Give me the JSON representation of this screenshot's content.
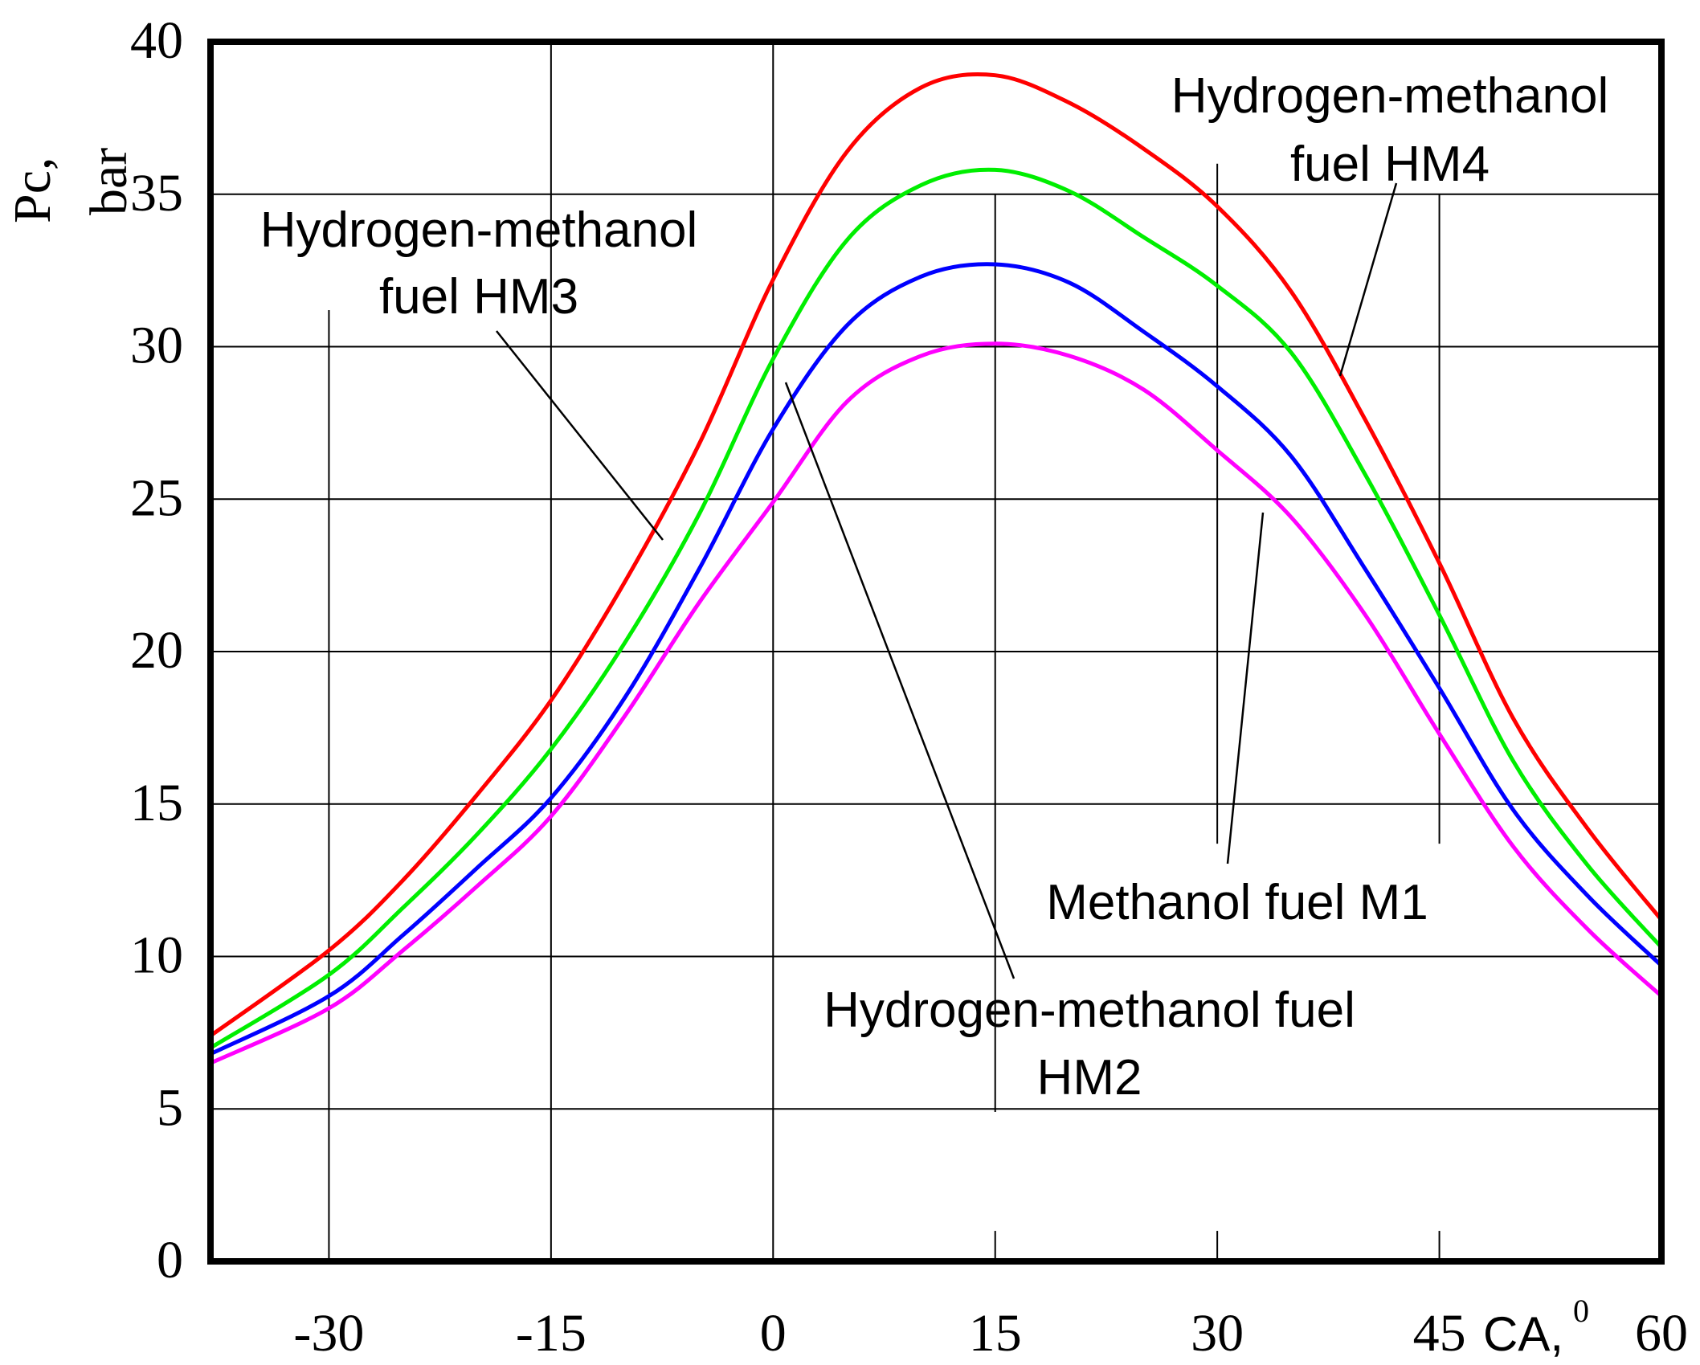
{
  "chart_data": {
    "type": "line",
    "title": "",
    "xlabel": "CA,",
    "xlabel_superscript": "0",
    "ylabel": "Pc,",
    "ylabel_unit": "bar",
    "xlim": [
      -38,
      60
    ],
    "ylim": [
      0,
      40
    ],
    "x_ticks": [
      -30,
      -15,
      0,
      15,
      30,
      45,
      60
    ],
    "x_tick_labels": [
      "-30",
      "-15",
      "0",
      "15",
      "30",
      "45",
      "60"
    ],
    "y_ticks": [
      0,
      5,
      10,
      15,
      20,
      25,
      30,
      35,
      40
    ],
    "y_tick_labels": [
      "0",
      "5",
      "10",
      "15",
      "20",
      "25",
      "30",
      "35",
      "40"
    ],
    "grid": true,
    "x": [
      -38,
      -30,
      -25,
      -20,
      -15,
      -10,
      -5,
      0,
      5,
      10,
      15,
      20,
      25,
      30,
      35,
      40,
      45,
      50,
      55,
      60
    ],
    "series": [
      {
        "name": "Hydrogen-methanol fuel HM4",
        "color": "#ff0000",
        "values": [
          7.4,
          10.2,
          12.5,
          15.3,
          18.4,
          22.3,
          26.8,
          32.2,
          36.4,
          38.5,
          38.9,
          38.0,
          36.5,
          34.6,
          31.8,
          27.6,
          22.9,
          17.8,
          14.2,
          11.2
        ]
      },
      {
        "name": "Hydrogen-methanol fuel HM3",
        "color": "#00ee00",
        "values": [
          7.0,
          9.4,
          11.6,
          14.0,
          16.8,
          20.3,
          24.5,
          29.6,
          33.5,
          35.3,
          35.8,
          35.1,
          33.6,
          32.0,
          29.8,
          25.8,
          21.2,
          16.4,
          13.0,
          10.3
        ]
      },
      {
        "name": "Hydrogen-methanol fuel HM2",
        "color": "#0000ff",
        "values": [
          6.8,
          8.7,
          10.7,
          12.9,
          15.2,
          18.5,
          22.7,
          27.3,
          30.7,
          32.3,
          32.7,
          32.1,
          30.5,
          28.7,
          26.4,
          22.7,
          18.8,
          14.8,
          12.0,
          9.7
        ]
      },
      {
        "name": "Methanol fuel M1",
        "color": "#ff00ff",
        "values": [
          6.5,
          8.3,
          10.2,
          12.3,
          14.6,
          17.9,
          21.6,
          24.9,
          28.2,
          29.7,
          30.1,
          29.7,
          28.6,
          26.6,
          24.4,
          21.2,
          17.3,
          13.6,
          10.9,
          8.7
        ]
      }
    ],
    "annotations": [
      {
        "lines": [
          "Hydrogen-methanol",
          "fuel HM4"
        ],
        "series": "Hydrogen-methanol fuel HM4"
      },
      {
        "lines": [
          "Hydrogen-methanol",
          "fuel HM3"
        ],
        "series": "Hydrogen-methanol fuel HM3"
      },
      {
        "lines": [
          "Methanol fuel M1"
        ],
        "series": "Methanol fuel M1"
      },
      {
        "lines": [
          "Hydrogen-methanol fuel",
          "HM2"
        ],
        "series": "Hydrogen-methanol fuel HM2"
      }
    ]
  }
}
